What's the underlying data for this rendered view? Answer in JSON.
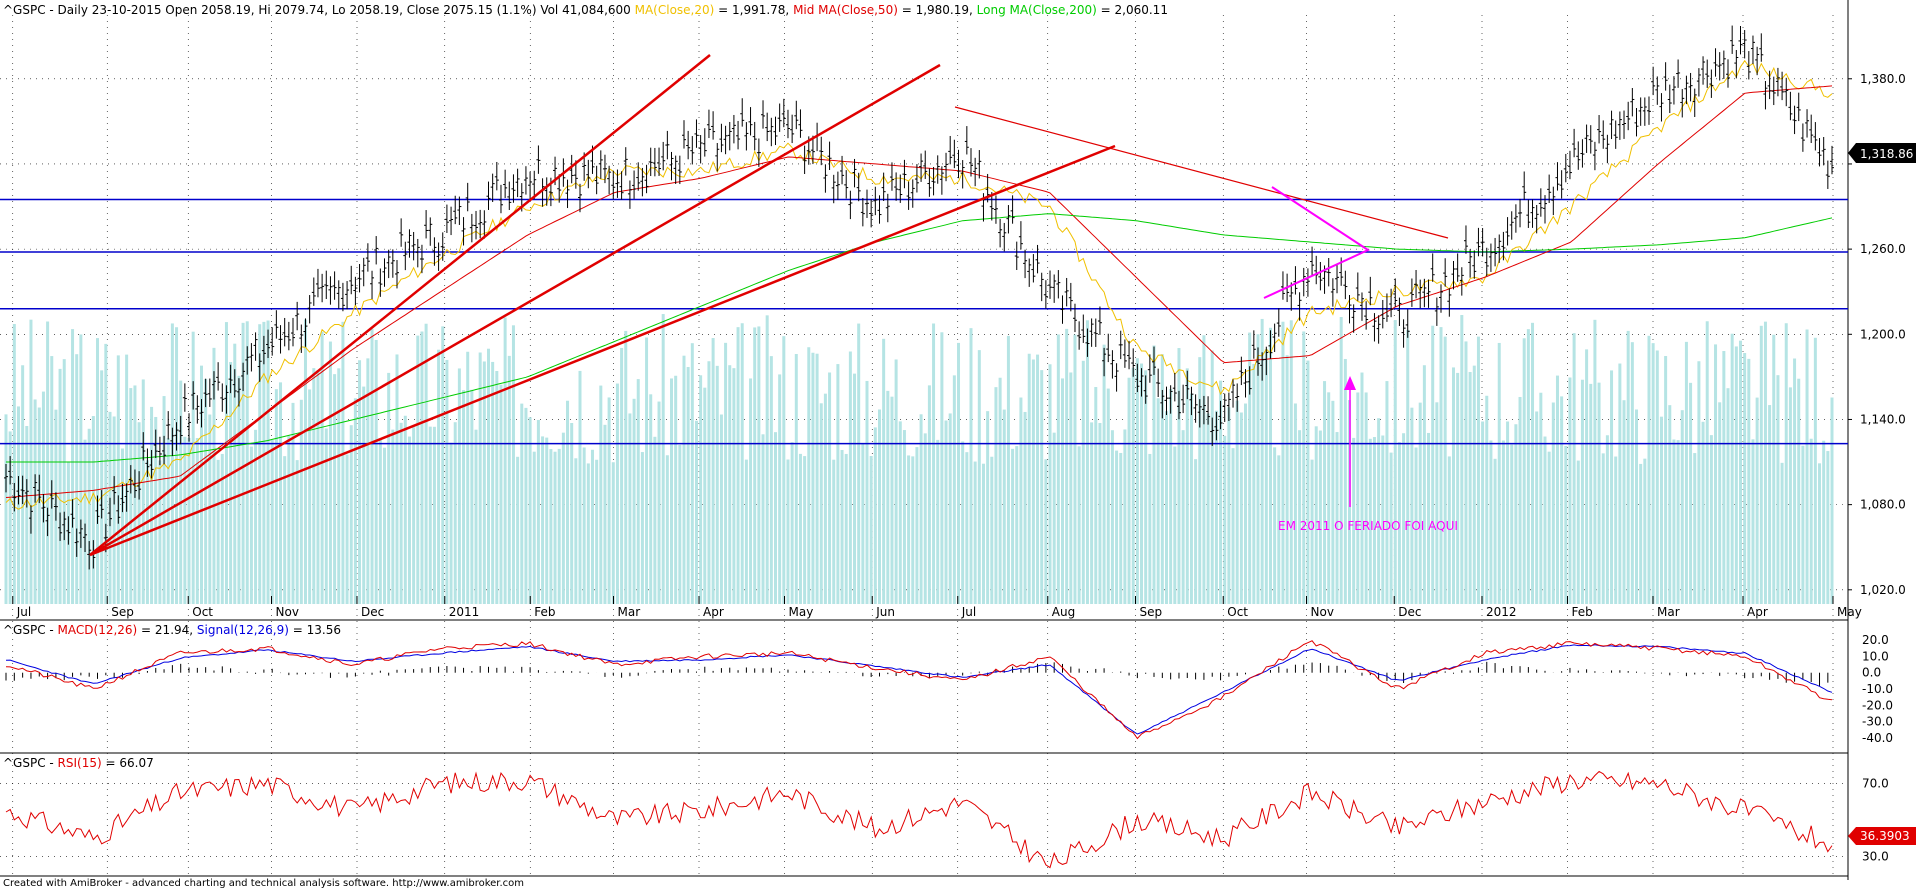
{
  "title_bar": {
    "symbol": "^GSPC",
    "main_prefix": " - Daily 23-10-2015 Open 2058.19, Hi 2079.74, Lo 2058.19, Close 2075.15 (1.1%) Vol 41,084,600 ",
    "ma20_label": "MA(Close,20)",
    "ma20_value": " = 1,991.78, ",
    "ma50_label": "Mid MA(Close,50)",
    "ma50_value": " = 1,980.19, ",
    "ma200_label": "Long MA(Close,200)",
    "ma200_value": " = 2,060.11"
  },
  "macd_header": {
    "prefix": "^GSPC - ",
    "macd_label": "MACD(12,26)",
    "macd_value": " = 21.94, ",
    "signal_label": "Signal(12,26,9)",
    "signal_value": " = 13.56"
  },
  "rsi_header": {
    "prefix": "^GSPC - ",
    "rsi_label": "RSI(15)",
    "rsi_value": " = 66.07"
  },
  "annotation": "EM 2011 O FERIADO FOI AQUI",
  "footer": "Created with AmiBroker - advanced charting and technical analysis software. http://www.amibroker.com",
  "last_price_label": "1,318.86",
  "last_rsi_label": "36.3903",
  "colors": {
    "background": "#ffffff",
    "price_bars": "#000000",
    "volume": "#b5e4e4",
    "ma20": "#f0c000",
    "ma50": "#e00000",
    "ma200": "#00cc00",
    "support_lines": "#0000cc",
    "trend_lines": "#e00000",
    "triangle": "#ff00ff",
    "macd": "#e00000",
    "signal": "#0000e0",
    "rsi": "#e00000"
  },
  "chart_data": [
    {
      "type": "candlestick",
      "title": "^GSPC Daily",
      "x_labels": [
        "Jul",
        "Sep",
        "Oct",
        "Nov",
        "Dec",
        "2011",
        "Feb",
        "Mar",
        "Apr",
        "May",
        "Jun",
        "Jul",
        "Aug",
        "Sep",
        "Oct",
        "Nov",
        "Dec",
        "2012",
        "Feb",
        "Mar",
        "Apr",
        "May"
      ],
      "y_ticks": [
        1020,
        1080,
        1140,
        1200,
        1260,
        1320,
        1380
      ],
      "y_tick_labels": [
        "1,020.0",
        "1,080.0",
        "1,140.0",
        "1,200.0",
        "1,260.0",
        "",
        "1,380.0"
      ],
      "ylim": [
        1010,
        1420
      ],
      "horizontal_lines": [
        1295,
        1258,
        1218,
        1123
      ],
      "series": [
        {
          "name": "Close",
          "x": [
            "Jul",
            "Sep",
            "Oct",
            "Nov",
            "Dec",
            "2011",
            "Feb",
            "Mar",
            "Apr",
            "May",
            "Jun",
            "Jul",
            "Aug",
            "Sep",
            "Oct",
            "Nov",
            "Dec",
            "2012",
            "Feb",
            "Mar",
            "Apr",
            "May"
          ],
          "values": [
            1100,
            1055,
            1140,
            1190,
            1240,
            1270,
            1315,
            1310,
            1330,
            1345,
            1290,
            1330,
            1230,
            1170,
            1140,
            1250,
            1210,
            1260,
            1320,
            1370,
            1400,
            1318.86
          ]
        },
        {
          "name": "MA(Close,20)",
          "values": [
            1080,
            1085,
            1110,
            1170,
            1215,
            1255,
            1290,
            1315,
            1315,
            1330,
            1310,
            1310,
            1290,
            1190,
            1160,
            1215,
            1230,
            1240,
            1290,
            1345,
            1390,
            1370
          ]
        },
        {
          "name": "Mid MA(Close,50)",
          "values": [
            1085,
            1090,
            1100,
            1145,
            1190,
            1230,
            1270,
            1300,
            1310,
            1325,
            1320,
            1315,
            1300,
            1240,
            1180,
            1185,
            1220,
            1240,
            1265,
            1320,
            1370,
            1375
          ]
        },
        {
          "name": "Long MA(Close,200)",
          "values": [
            1110,
            1110,
            1115,
            1125,
            1140,
            1155,
            1170,
            1195,
            1220,
            1245,
            1265,
            1280,
            1285,
            1280,
            1270,
            1265,
            1260,
            1258,
            1260,
            1263,
            1268,
            1282
          ]
        }
      ]
    },
    {
      "type": "line",
      "title": "MACD",
      "y_ticks": [
        20,
        10,
        0,
        -10,
        -20,
        -30,
        -40
      ],
      "y_tick_labels": [
        "20.0",
        "10.0",
        "0.0",
        "-10.0",
        "-20.0",
        "-30.0",
        "-40.0"
      ],
      "ylim": [
        -45,
        25
      ],
      "series": [
        {
          "name": "MACD(12,26)",
          "values": [
            5,
            -10,
            12,
            15,
            5,
            15,
            18,
            5,
            10,
            12,
            3,
            -5,
            10,
            -40,
            -15,
            20,
            -10,
            12,
            18,
            15,
            10,
            -18
          ]
        },
        {
          "name": "Signal(12,26,9)",
          "values": [
            8,
            -7,
            9,
            14,
            7,
            12,
            16,
            7,
            8,
            11,
            4,
            -3,
            5,
            -38,
            -12,
            15,
            -5,
            8,
            17,
            16,
            12,
            -12
          ]
        }
      ]
    },
    {
      "type": "line",
      "title": "RSI",
      "y_ticks": [
        70,
        30
      ],
      "y_tick_labels": [
        "70.0",
        "30.0"
      ],
      "ylim": [
        20,
        80
      ],
      "series": [
        {
          "name": "RSI(15)",
          "values": [
            55,
            40,
            65,
            70,
            55,
            70,
            72,
            50,
            55,
            65,
            45,
            60,
            25,
            50,
            40,
            65,
            45,
            60,
            72,
            70,
            55,
            36.39
          ]
        }
      ]
    }
  ]
}
